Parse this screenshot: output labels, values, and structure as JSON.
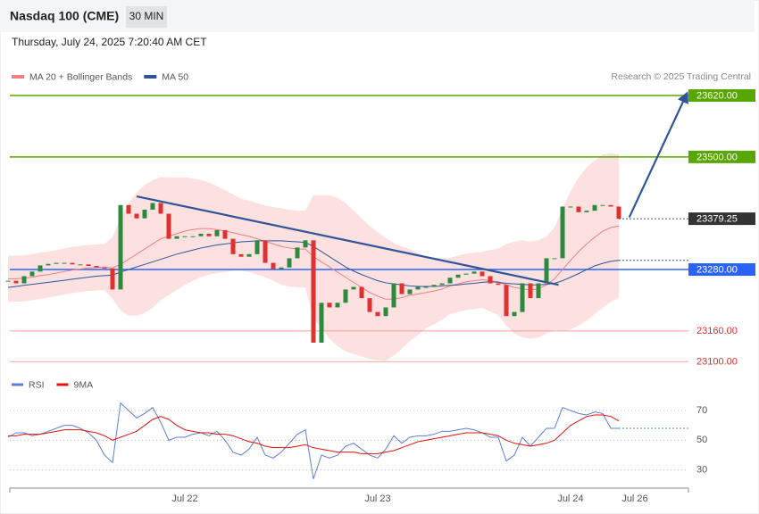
{
  "chart_data": [
    {
      "type": "candlestick",
      "title": "Nasdaq 100 (CME)",
      "timeframe": "30 MIN",
      "timestamp": "Thursday, July 24, 2025 7:20:40 AM CET",
      "source": "Research © 2025 Trading Central",
      "ylim": [
        23083,
        23641
      ],
      "price": {
        "up_color": "#2b8a3e",
        "down_color": "#e03131",
        "last_color": "#333333",
        "values": [
          23258,
          23253,
          23267,
          23276,
          23288,
          23291,
          23293,
          23293,
          23290,
          23290,
          23287,
          23284,
          23282,
          23241,
          23406,
          23389,
          23380,
          23397,
          23410,
          23389,
          23340,
          23345,
          23345,
          23345,
          23350,
          23345,
          23357,
          23340,
          23310,
          23305,
          23310,
          23337,
          23293,
          23281,
          23284,
          23302,
          23323,
          23337,
          23137,
          23215,
          23206,
          23215,
          23241,
          23246,
          23224,
          23197,
          23189,
          23206,
          23253,
          23232,
          23241,
          23246,
          23246,
          23250,
          23253,
          23264,
          23270,
          23272,
          23276,
          23267,
          23253,
          23250,
          23189,
          23197,
          23253,
          23224,
          23253,
          23302,
          23302,
          23403,
          23403,
          23392,
          23395,
          23406,
          23406,
          23403,
          23379.25,
          null,
          null,
          null,
          null,
          null,
          null,
          null,
          null
        ]
      },
      "series": [
        {
          "name": "MA 20 + Bollinger Bands",
          "color": "#f08080",
          "band_color": "#fde0e0",
          "values": [
            23262,
            23262,
            23263,
            23265,
            23268,
            23270,
            23273,
            23276,
            23279,
            23281,
            23283,
            23284,
            23285,
            23283,
            23290,
            23300,
            23310,
            23320,
            23330,
            23340,
            23345,
            23350,
            23355,
            23358,
            23360,
            23360,
            23358,
            23355,
            23352,
            23348,
            23345,
            23340,
            23335,
            23330,
            23325,
            23322,
            23320,
            23320,
            23305,
            23295,
            23285,
            23275,
            23265,
            23255,
            23245,
            23235,
            23228,
            23222,
            23222,
            23225,
            23230,
            23232,
            23235,
            23238,
            23242,
            23248,
            23252,
            23256,
            23258,
            23260,
            23258,
            23256,
            23250,
            23245,
            23242,
            23240,
            23242,
            23250,
            23262,
            23280,
            23298,
            23315,
            23330,
            23343,
            23355,
            23362,
            23365,
            null,
            null,
            null,
            null,
            null,
            null,
            null,
            null
          ],
          "upper": [
            23307,
            23307,
            23308,
            23310,
            23313,
            23315,
            23318,
            23321,
            23324,
            23326,
            23328,
            23329,
            23330,
            23343,
            23380,
            23410,
            23430,
            23445,
            23455,
            23460,
            23460,
            23460,
            23460,
            23458,
            23455,
            23450,
            23443,
            23435,
            23427,
            23418,
            23415,
            23410,
            23405,
            23402,
            23400,
            23397,
            23395,
            23395,
            23425,
            23425,
            23425,
            23420,
            23410,
            23395,
            23380,
            23365,
            23353,
            23342,
            23332,
            23325,
            23320,
            23312,
            23305,
            23303,
            23302,
            23303,
            23307,
            23311,
            23313,
            23315,
            23318,
            23321,
            23330,
            23335,
            23337,
            23335,
            23337,
            23345,
            23362,
            23400,
            23433,
            23460,
            23480,
            23493,
            23505,
            23507,
            23505,
            null,
            null,
            null,
            null,
            null,
            null,
            null,
            null
          ],
          "lower": [
            23217,
            23217,
            23218,
            23220,
            23223,
            23225,
            23228,
            23231,
            23234,
            23236,
            23238,
            23239,
            23240,
            23223,
            23200,
            23190,
            23190,
            23195,
            23205,
            23220,
            23230,
            23240,
            23250,
            23258,
            23265,
            23270,
            23273,
            23275,
            23277,
            23278,
            23275,
            23270,
            23265,
            23258,
            23250,
            23247,
            23245,
            23245,
            23185,
            23165,
            23145,
            23130,
            23120,
            23115,
            23110,
            23105,
            23103,
            23102,
            23112,
            23125,
            23140,
            23152,
            23165,
            23173,
            23182,
            23193,
            23197,
            23201,
            23203,
            23205,
            23198,
            23191,
            23170,
            23155,
            23147,
            23145,
            23147,
            23155,
            23162,
            23160,
            23163,
            23170,
            23180,
            23193,
            23205,
            23217,
            23225,
            null,
            null,
            null,
            null,
            null,
            null,
            null,
            null
          ]
        },
        {
          "name": "MA 50",
          "color": "#2f5597",
          "values": [
            23245,
            23247,
            23249,
            23251,
            23253,
            23255,
            23257,
            23259,
            23261,
            23263,
            23265,
            23267,
            23268,
            23269,
            23275,
            23280,
            23285,
            23290,
            23295,
            23300,
            23305,
            23310,
            23314,
            23318,
            23322,
            23325,
            23328,
            23330,
            23332,
            23334,
            23335,
            23336,
            23336,
            23336,
            23336,
            23335,
            23334,
            23333,
            23325,
            23315,
            23305,
            23295,
            23285,
            23277,
            23270,
            23264,
            23258,
            23254,
            23252,
            23250,
            23248,
            23247,
            23247,
            23247,
            23248,
            23249,
            23250,
            23252,
            23253,
            23255,
            23256,
            23255,
            23253,
            23252,
            23251,
            23250,
            23250,
            23251,
            23253,
            23258,
            23265,
            23272,
            23280,
            23287,
            23292,
            23296,
            23298,
            null,
            null,
            null,
            null,
            null,
            null,
            null,
            null
          ]
        }
      ],
      "levels": [
        {
          "value": 23620,
          "label": "23620.00",
          "color": "#58a600",
          "boxed": true
        },
        {
          "value": 23500,
          "label": "23500.00",
          "color": "#58a600",
          "boxed": true
        },
        {
          "value": 23280,
          "label": "23280.00",
          "color": "#2962ff",
          "boxed": true
        },
        {
          "value": 23160,
          "label": "23160.00",
          "color": "#f4a0a0",
          "text_color": "#e03030",
          "boxed": false
        },
        {
          "value": 23100,
          "label": "23100.00",
          "color": "#f4a0a0",
          "text_color": "#e03030",
          "boxed": false
        }
      ],
      "trendlines": [
        {
          "x": [
            16,
            68.5
          ],
          "y": [
            23423,
            23250
          ],
          "color": "#2f5597",
          "arrow": false
        },
        {
          "x": [
            77.3,
            84.3
          ],
          "y": [
            23382,
            23618
          ],
          "color": "#2f5597",
          "arrow": true
        }
      ]
    },
    {
      "type": "line",
      "categories": [
        null,
        null,
        null,
        null,
        null,
        null,
        null,
        null,
        null,
        null,
        null,
        null,
        null,
        null,
        null,
        null,
        null,
        null,
        null,
        null,
        null,
        null,
        "Jul 22",
        null,
        null,
        null,
        null,
        null,
        null,
        null,
        null,
        null,
        null,
        null,
        null,
        null,
        null,
        null,
        null,
        null,
        null,
        null,
        null,
        null,
        null,
        null,
        "Jul 23",
        null,
        null,
        null,
        null,
        null,
        null,
        null,
        null,
        null,
        null,
        null,
        null,
        null,
        null,
        null,
        null,
        null,
        null,
        null,
        null,
        null,
        null,
        null,
        "Jul 24",
        null,
        null,
        null,
        null,
        null,
        null,
        null,
        "Jul 26",
        null,
        null,
        null,
        null,
        null,
        null
      ],
      "ylim": [
        19,
        79
      ],
      "yticks": [
        30,
        50,
        70
      ],
      "grid": true,
      "series": [
        {
          "name": "RSI",
          "color": "#5b7fd8",
          "values": [
            52,
            55,
            55,
            53,
            54,
            56,
            58,
            60,
            60,
            58,
            55,
            50,
            40,
            35,
            75,
            70,
            65,
            68,
            72,
            62,
            50,
            52,
            52,
            54,
            55,
            53,
            56,
            50,
            42,
            40,
            44,
            52,
            40,
            38,
            42,
            48,
            54,
            57,
            24,
            40,
            38,
            40,
            46,
            48,
            44,
            40,
            38,
            44,
            53,
            48,
            52,
            53,
            53,
            54,
            56,
            56,
            57,
            58,
            57,
            55,
            52,
            52,
            36,
            40,
            52,
            46,
            52,
            58,
            58,
            72,
            70,
            68,
            67,
            69,
            68,
            58,
            58,
            null,
            null,
            null,
            null,
            null,
            null,
            null,
            null
          ]
        },
        {
          "name": "9MA",
          "color": "#e01010",
          "values": [
            53,
            53,
            54,
            54,
            54,
            55,
            56,
            57,
            57,
            57,
            56,
            55,
            53,
            50,
            52,
            54,
            56,
            60,
            64,
            66,
            64,
            60,
            57,
            56,
            55,
            55,
            54,
            54,
            53,
            51,
            49,
            48,
            46,
            45,
            45,
            45,
            46,
            47,
            45,
            44,
            43,
            42,
            42,
            42,
            41,
            41,
            41,
            42,
            43,
            45,
            47,
            49,
            50,
            51,
            52,
            53,
            54,
            55,
            55,
            55,
            54,
            53,
            50,
            48,
            47,
            46,
            47,
            48,
            50,
            55,
            60,
            63,
            66,
            67,
            67,
            66,
            63,
            null,
            null,
            null,
            null,
            null,
            null,
            null,
            null
          ]
        }
      ]
    }
  ]
}
